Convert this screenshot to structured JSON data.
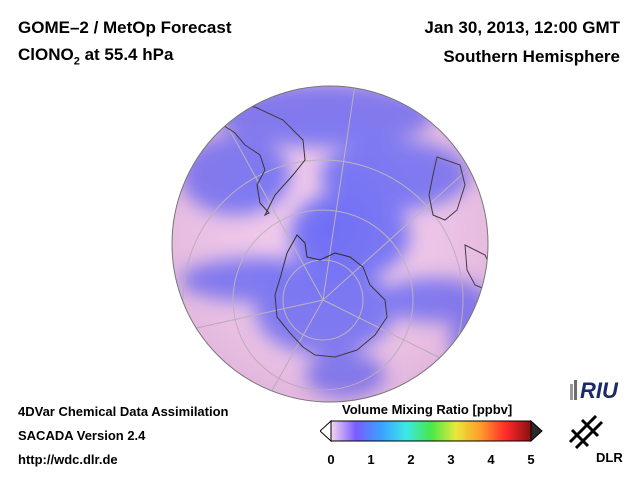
{
  "header": {
    "title_line1": "GOME–2 / MetOp Forecast",
    "species": "ClONO",
    "species_sub": "2",
    "species_suffix": " at 55.4 hPa",
    "date": "Jan 30, 2013, 12:00 GMT",
    "hemisphere": "Southern Hemisphere"
  },
  "footer": {
    "line1": "4DVar Chemical Data Assimilation",
    "line2": "SACADA Version 2.4",
    "line3": "http://wdc.dlr.de"
  },
  "colorbar": {
    "title": "Volume Mixing Ratio [ppbv]",
    "ticks": [
      "0",
      "1",
      "2",
      "3",
      "4",
      "5"
    ],
    "stops": [
      "#f4d6ee",
      "#7a5cff",
      "#3aa0ff",
      "#3ce8e8",
      "#48e848",
      "#e8e83a",
      "#ff9a2a",
      "#ff2a2a",
      "#8a1010"
    ]
  },
  "map": {
    "background_color": "#efc6ea",
    "low_value_color": "#6a6af5",
    "projection": "orthographic-south-polar"
  },
  "logos": {
    "riu": "RIU",
    "dlr": "DLR"
  },
  "icons": [
    "riu-logo-icon",
    "dlr-logo-icon"
  ]
}
